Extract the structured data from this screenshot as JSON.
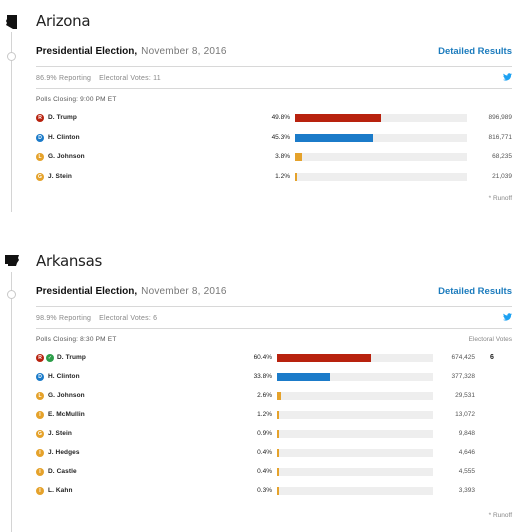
{
  "states": [
    {
      "name": "Arizona",
      "election_title": "Presidential Election,",
      "election_date": "November 8, 2016",
      "detail_link": "Detailed Results",
      "reporting": "86.9% Reporting",
      "electoral_votes": "Electoral Votes: 11",
      "polls_closing": "Polls Closing: 9:00 PM ET",
      "ev_header": "",
      "runoff": "* Runoff",
      "candidates": [
        {
          "party": "R",
          "name": "D. Trump",
          "pct": "49.8%",
          "share": 0.498,
          "votes": "896,989",
          "winner": false,
          "ev": ""
        },
        {
          "party": "D",
          "name": "H. Clinton",
          "pct": "45.3%",
          "share": 0.453,
          "votes": "816,771",
          "winner": false,
          "ev": ""
        },
        {
          "party": "L",
          "name": "G. Johnson",
          "pct": "3.8%",
          "share": 0.038,
          "votes": "68,235",
          "winner": false,
          "ev": ""
        },
        {
          "party": "G",
          "name": "J. Stein",
          "pct": "1.2%",
          "share": 0.012,
          "votes": "21,039",
          "winner": false,
          "ev": ""
        }
      ]
    },
    {
      "name": "Arkansas",
      "election_title": "Presidential Election,",
      "election_date": "November 8, 2016",
      "detail_link": "Detailed Results",
      "reporting": "98.9% Reporting",
      "electoral_votes": "Electoral Votes: 6",
      "polls_closing": "Polls Closing: 8:30 PM ET",
      "ev_header": "Electoral Votes",
      "runoff": "* Runoff",
      "candidates": [
        {
          "party": "R",
          "name": "D. Trump",
          "pct": "60.4%",
          "share": 0.604,
          "votes": "674,425",
          "winner": true,
          "ev": "6"
        },
        {
          "party": "D",
          "name": "H. Clinton",
          "pct": "33.8%",
          "share": 0.338,
          "votes": "377,328",
          "winner": false,
          "ev": ""
        },
        {
          "party": "L",
          "name": "G. Johnson",
          "pct": "2.6%",
          "share": 0.026,
          "votes": "29,531",
          "winner": false,
          "ev": ""
        },
        {
          "party": "I",
          "name": "E. McMullin",
          "pct": "1.2%",
          "share": 0.012,
          "votes": "13,072",
          "winner": false,
          "ev": ""
        },
        {
          "party": "G",
          "name": "J. Stein",
          "pct": "0.9%",
          "share": 0.009,
          "votes": "9,848",
          "winner": false,
          "ev": ""
        },
        {
          "party": "I",
          "name": "J. Hedges",
          "pct": "0.4%",
          "share": 0.004,
          "votes": "4,646",
          "winner": false,
          "ev": ""
        },
        {
          "party": "I",
          "name": "D. Castle",
          "pct": "0.4%",
          "share": 0.004,
          "votes": "4,555",
          "winner": false,
          "ev": ""
        },
        {
          "party": "I",
          "name": "L. Kahn",
          "pct": "0.3%",
          "share": 0.003,
          "votes": "3,393",
          "winner": false,
          "ev": ""
        }
      ]
    }
  ],
  "colors": {
    "R": "#b8220e",
    "D": "#1b7bc9",
    "L": "#e5a22b",
    "G": "#e5a22b",
    "I": "#e5a22b",
    "link": "#1b7bbd",
    "twitter": "#1da1f2",
    "winner_check": "#2d9e4a"
  },
  "icons": {
    "twitter": "twitter-icon",
    "winner": "check-icon"
  }
}
